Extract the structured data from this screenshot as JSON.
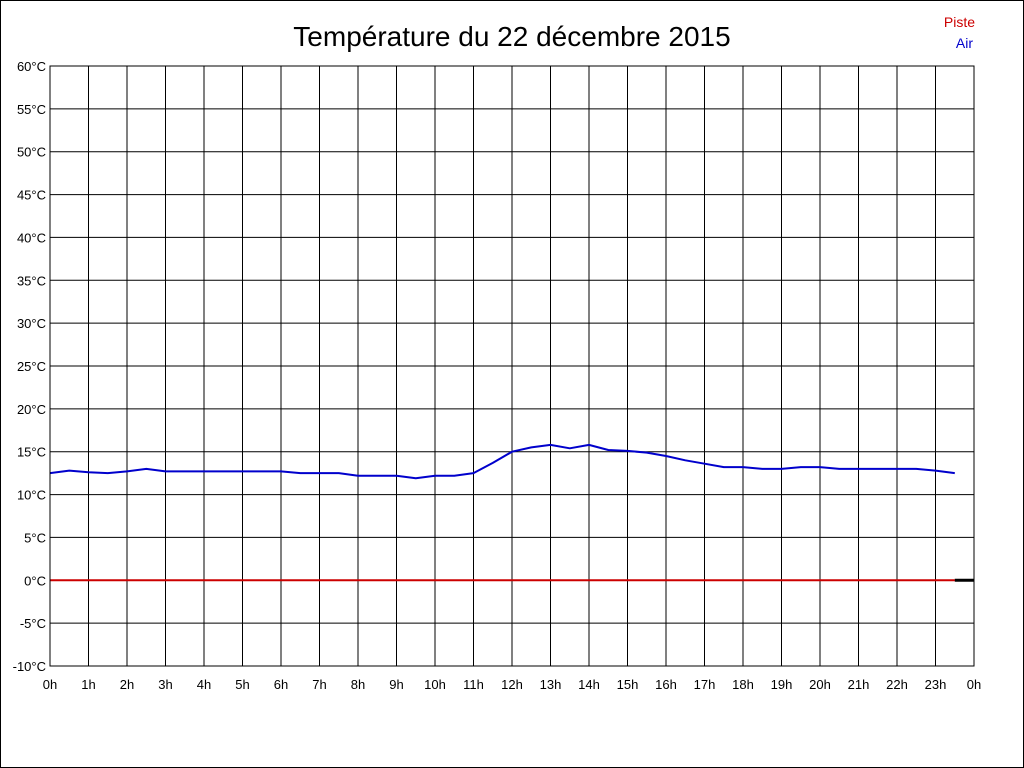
{
  "chart_data": {
    "type": "line",
    "title": "Température du 22 décembre 2015",
    "x_ticks": [
      "0h",
      "1h",
      "2h",
      "3h",
      "4h",
      "5h",
      "6h",
      "7h",
      "8h",
      "9h",
      "10h",
      "11h",
      "12h",
      "13h",
      "14h",
      "15h",
      "16h",
      "17h",
      "18h",
      "19h",
      "20h",
      "21h",
      "22h",
      "23h",
      "0h"
    ],
    "y_ticks": [
      "-10°C",
      "-5°C",
      "0°C",
      "5°C",
      "10°C",
      "15°C",
      "20°C",
      "25°C",
      "30°C",
      "35°C",
      "40°C",
      "45°C",
      "50°C",
      "55°C",
      "60°C"
    ],
    "xlim": [
      0,
      24
    ],
    "ylim": [
      -10,
      60
    ],
    "grid": true,
    "legend_position": "top-right",
    "series": [
      {
        "name": "Piste",
        "color": "#cc0000",
        "x": [
          0,
          23.5
        ],
        "values": [
          0,
          0
        ]
      },
      {
        "name": "Air",
        "color": "#0000cc",
        "x": [
          0,
          0.5,
          1,
          1.5,
          2,
          2.5,
          3,
          3.5,
          4,
          4.5,
          5,
          5.5,
          6,
          6.5,
          7,
          7.5,
          8,
          8.5,
          9,
          9.5,
          10,
          10.5,
          11,
          11.5,
          12,
          12.5,
          13,
          13.5,
          14,
          14.5,
          15,
          15.5,
          16,
          16.5,
          17,
          17.5,
          18,
          18.5,
          19,
          19.5,
          20,
          20.5,
          21,
          21.5,
          22,
          22.5,
          23,
          23.5
        ],
        "values": [
          12.5,
          12.8,
          12.6,
          12.5,
          12.7,
          13.0,
          12.7,
          12.7,
          12.7,
          12.7,
          12.7,
          12.7,
          12.7,
          12.5,
          12.5,
          12.5,
          12.2,
          12.2,
          12.2,
          11.9,
          12.2,
          12.2,
          12.5,
          13.7,
          15.0,
          15.5,
          15.8,
          15.4,
          15.8,
          15.2,
          15.1,
          14.9,
          14.5,
          14.0,
          13.6,
          13.2,
          13.2,
          13.0,
          13.0,
          13.2,
          13.2,
          13.0,
          13.0,
          13.0,
          13.0,
          13.0,
          12.8,
          12.5
        ]
      }
    ]
  }
}
